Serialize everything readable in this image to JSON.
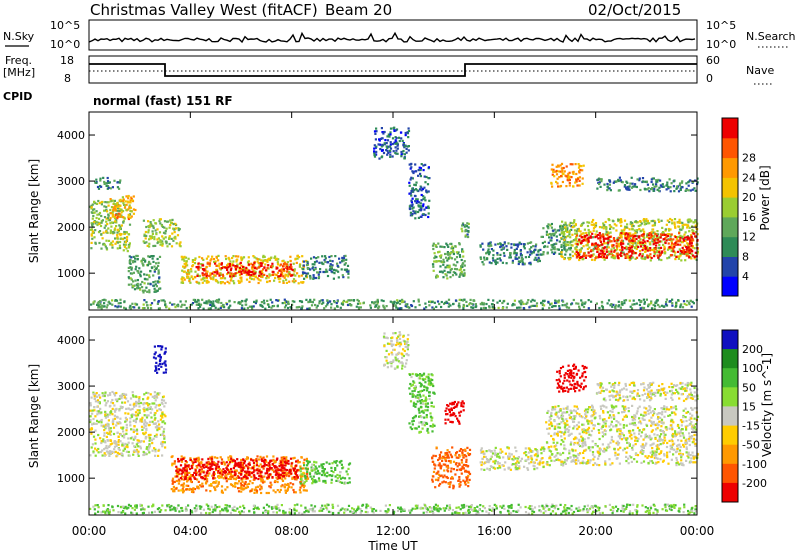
{
  "header": {
    "title": "Christmas Valley West (fitACF)",
    "beam": "Beam 20",
    "date": "02/Oct/2015"
  },
  "top_panels": {
    "nsky_label": "N.Sky",
    "nsky_ticks": [
      "10^5",
      "10^0"
    ],
    "nsearch_label": "N.Search",
    "nsearch_ticks": [
      "10^5",
      "10^0"
    ],
    "freq_label": "Freq.",
    "freq_unit": "[MHz]",
    "freq_ticks": [
      "18",
      "8"
    ],
    "nave_label": "Nave",
    "nave_ticks": [
      "60",
      "0"
    ],
    "cpid_label": "CPID",
    "cpid_value": "normal (fast) 151 RF"
  },
  "colors": {
    "power": [
      "#0000ff",
      "#2244aa",
      "#2e8b57",
      "#5fa85a",
      "#9acd32",
      "#f4c300",
      "#ff9900",
      "#ff5500",
      "#ee0000"
    ],
    "velocity": [
      "#1010c0",
      "#1e8c1e",
      "#44bb33",
      "#88dd33",
      "#c8c8c0",
      "#ffcc00",
      "#ff9900",
      "#ff5500",
      "#ee0000"
    ],
    "ground_scatter": "#c8c8c0"
  },
  "chart_data": [
    {
      "type": "heatmap",
      "title": "",
      "xlabel": "",
      "ylabel": "Slant Range [km]",
      "x_ticks": [
        "00:00",
        "04:00",
        "08:00",
        "12:00",
        "16:00",
        "20:00",
        "00:00"
      ],
      "xlim": [
        0,
        24
      ],
      "y_ticks": [
        "1000",
        "2000",
        "3000",
        "4000"
      ],
      "ylim": [
        200,
        4500
      ],
      "colorbar_label": "Power [dB]",
      "colorbar_ticks": [
        "4",
        "8",
        "12",
        "16",
        "20",
        "24",
        "28"
      ],
      "colorbar_range": [
        0,
        30
      ],
      "regions": [
        {
          "x": [
            0.0,
            1.6
          ],
          "y": [
            1500,
            2600
          ],
          "level": 14
        },
        {
          "x": [
            0.2,
            1.2
          ],
          "y": [
            2850,
            3100
          ],
          "level": 8
        },
        {
          "x": [
            0.8,
            1.8
          ],
          "y": [
            2200,
            2700
          ],
          "level": 20
        },
        {
          "x": [
            2.1,
            3.6
          ],
          "y": [
            1600,
            2200
          ],
          "level": 14
        },
        {
          "x": [
            1.5,
            2.8
          ],
          "y": [
            600,
            1400
          ],
          "level": 10
        },
        {
          "x": [
            3.6,
            8.6
          ],
          "y": [
            800,
            1400
          ],
          "level": 18
        },
        {
          "x": [
            4.2,
            8.0
          ],
          "y": [
            950,
            1250
          ],
          "level": 28
        },
        {
          "x": [
            8.4,
            10.2
          ],
          "y": [
            900,
            1400
          ],
          "level": 8
        },
        {
          "x": [
            11.2,
            12.6
          ],
          "y": [
            3500,
            4200
          ],
          "level": 6
        },
        {
          "x": [
            12.6,
            13.4
          ],
          "y": [
            2200,
            3400
          ],
          "level": 6
        },
        {
          "x": [
            13.5,
            14.8
          ],
          "y": [
            900,
            1700
          ],
          "level": 12
        },
        {
          "x": [
            14.6,
            15.0
          ],
          "y": [
            1800,
            2200
          ],
          "level": 10
        },
        {
          "x": [
            15.4,
            17.8
          ],
          "y": [
            1200,
            1700
          ],
          "level": 8
        },
        {
          "x": [
            17.8,
            19.0
          ],
          "y": [
            1400,
            2100
          ],
          "level": 10
        },
        {
          "x": [
            18.2,
            19.5
          ],
          "y": [
            2900,
            3400
          ],
          "level": 22
        },
        {
          "x": [
            18.6,
            24.0
          ],
          "y": [
            1300,
            2200
          ],
          "level": 16
        },
        {
          "x": [
            19.2,
            24.0
          ],
          "y": [
            1350,
            1900
          ],
          "level": 28
        },
        {
          "x": [
            20.0,
            24.0
          ],
          "y": [
            2800,
            3100
          ],
          "level": 8
        },
        {
          "x": [
            0.0,
            24.0
          ],
          "y": [
            250,
            450
          ],
          "level": 10
        }
      ]
    },
    {
      "type": "heatmap",
      "title": "",
      "xlabel": "Time UT",
      "ylabel": "Slant Range [km]",
      "x_ticks": [
        "00:00",
        "04:00",
        "08:00",
        "12:00",
        "16:00",
        "20:00",
        "00:00"
      ],
      "xlim": [
        0,
        24
      ],
      "y_ticks": [
        "1000",
        "2000",
        "3000",
        "4000"
      ],
      "ylim": [
        200,
        4500
      ],
      "colorbar_label": "Velocity [m s^-1]",
      "colorbar_ticks": [
        "200",
        "100",
        "50",
        "15",
        "-15",
        "-50",
        "-100",
        "-200"
      ],
      "colorbar_range": [
        -250,
        250
      ],
      "regions": [
        {
          "x": [
            0.0,
            3.0
          ],
          "y": [
            1500,
            2900
          ],
          "level": 0
        },
        {
          "x": [
            2.5,
            3.0
          ],
          "y": [
            3300,
            3900
          ],
          "level": 230
        },
        {
          "x": [
            3.2,
            8.6
          ],
          "y": [
            700,
            1500
          ],
          "level": -60
        },
        {
          "x": [
            3.4,
            8.2
          ],
          "y": [
            1000,
            1450
          ],
          "level": -180
        },
        {
          "x": [
            8.3,
            10.3
          ],
          "y": [
            900,
            1400
          ],
          "level": 40
        },
        {
          "x": [
            11.6,
            12.6
          ],
          "y": [
            3400,
            4200
          ],
          "level": 0
        },
        {
          "x": [
            12.6,
            13.6
          ],
          "y": [
            2000,
            3300
          ],
          "level": 40
        },
        {
          "x": [
            13.5,
            15.0
          ],
          "y": [
            800,
            1700
          ],
          "level": -90
        },
        {
          "x": [
            14.0,
            14.8
          ],
          "y": [
            2200,
            2700
          ],
          "level": -200
        },
        {
          "x": [
            15.4,
            18.0
          ],
          "y": [
            1200,
            1700
          ],
          "level": 0
        },
        {
          "x": [
            18.0,
            24.0
          ],
          "y": [
            1300,
            2600
          ],
          "level": 0
        },
        {
          "x": [
            18.4,
            19.6
          ],
          "y": [
            2900,
            3500
          ],
          "level": -200
        },
        {
          "x": [
            20.0,
            24.0
          ],
          "y": [
            2700,
            3100
          ],
          "level": 0
        },
        {
          "x": [
            0.0,
            24.0
          ],
          "y": [
            250,
            450
          ],
          "level": 30
        }
      ]
    }
  ]
}
